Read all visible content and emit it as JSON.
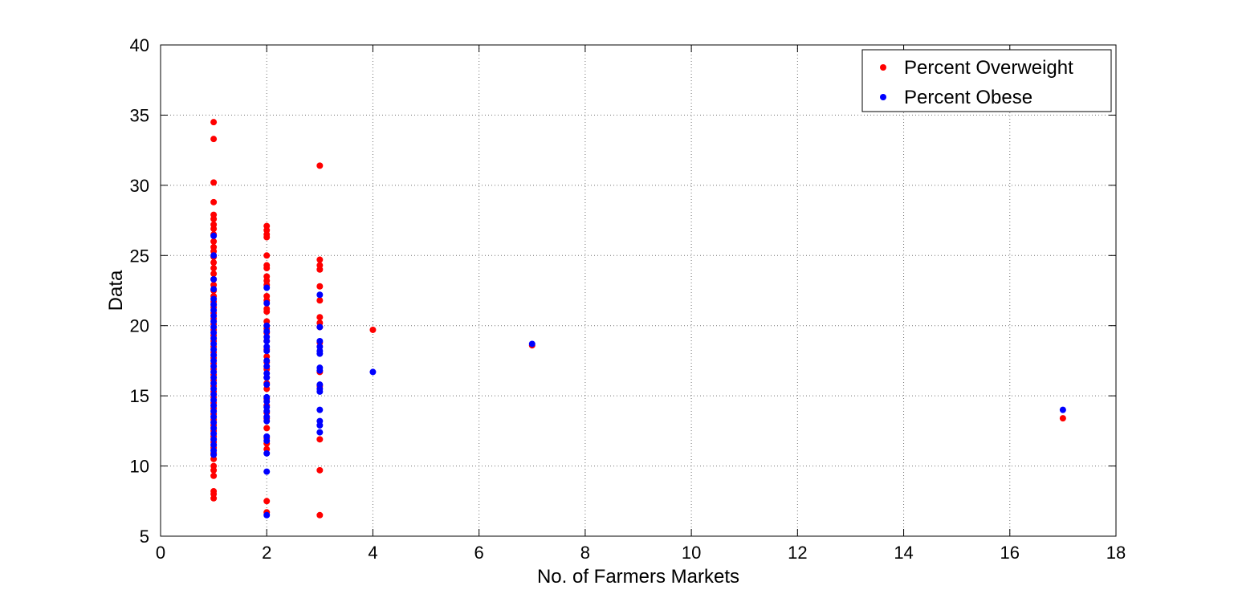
{
  "chart_data": {
    "type": "scatter",
    "title": "",
    "xlabel": "No. of Farmers Markets",
    "ylabel": "Data",
    "xlim": [
      0,
      18
    ],
    "ylim": [
      5,
      40
    ],
    "xticks": [
      0,
      2,
      4,
      6,
      8,
      10,
      12,
      14,
      16,
      18
    ],
    "yticks": [
      5,
      10,
      15,
      20,
      25,
      30,
      35,
      40
    ],
    "grid": true,
    "legend_position": "top-right",
    "series": [
      {
        "name": "Percent Overweight",
        "color": "#ff0000",
        "points": [
          [
            1,
            34.5
          ],
          [
            1,
            33.3
          ],
          [
            1,
            30.2
          ],
          [
            1,
            28.8
          ],
          [
            1,
            27.9
          ],
          [
            1,
            27.6
          ],
          [
            1,
            27.2
          ],
          [
            1,
            26.9
          ],
          [
            1,
            26.5
          ],
          [
            1,
            26.0
          ],
          [
            1,
            25.6
          ],
          [
            1,
            25.3
          ],
          [
            1,
            24.9
          ],
          [
            1,
            24.5
          ],
          [
            1,
            24.1
          ],
          [
            1,
            23.7
          ],
          [
            1,
            23.3
          ],
          [
            1,
            22.9
          ],
          [
            1,
            22.5
          ],
          [
            1,
            22.1
          ],
          [
            1,
            21.7
          ],
          [
            1,
            21.3
          ],
          [
            1,
            20.9
          ],
          [
            1,
            20.5
          ],
          [
            1,
            20.1
          ],
          [
            1,
            19.7
          ],
          [
            1,
            19.3
          ],
          [
            1,
            18.9
          ],
          [
            1,
            18.5
          ],
          [
            1,
            18.1
          ],
          [
            1,
            17.7
          ],
          [
            1,
            17.3
          ],
          [
            1,
            16.9
          ],
          [
            1,
            16.5
          ],
          [
            1,
            16.1
          ],
          [
            1,
            15.7
          ],
          [
            1,
            15.3
          ],
          [
            1,
            14.9
          ],
          [
            1,
            14.5
          ],
          [
            1,
            14.1
          ],
          [
            1,
            13.7
          ],
          [
            1,
            13.3
          ],
          [
            1,
            12.9
          ],
          [
            1,
            12.5
          ],
          [
            1,
            12.1
          ],
          [
            1,
            11.7
          ],
          [
            1,
            11.3
          ],
          [
            1,
            10.9
          ],
          [
            1,
            10.5
          ],
          [
            1,
            10.0
          ],
          [
            1,
            9.7
          ],
          [
            1,
            9.3
          ],
          [
            1,
            8.2
          ],
          [
            1,
            8.0
          ],
          [
            1,
            7.7
          ],
          [
            2,
            27.1
          ],
          [
            2,
            26.8
          ],
          [
            2,
            26.5
          ],
          [
            2,
            26.3
          ],
          [
            2,
            25.0
          ],
          [
            2,
            24.3
          ],
          [
            2,
            24.1
          ],
          [
            2,
            23.5
          ],
          [
            2,
            23.2
          ],
          [
            2,
            22.9
          ],
          [
            2,
            22.1
          ],
          [
            2,
            21.8
          ],
          [
            2,
            21.2
          ],
          [
            2,
            21.0
          ],
          [
            2,
            20.3
          ],
          [
            2,
            19.8
          ],
          [
            2,
            19.5
          ],
          [
            2,
            18.9
          ],
          [
            2,
            18.3
          ],
          [
            2,
            17.8
          ],
          [
            2,
            17.4
          ],
          [
            2,
            16.9
          ],
          [
            2,
            16.3
          ],
          [
            2,
            15.9
          ],
          [
            2,
            15.5
          ],
          [
            2,
            14.8
          ],
          [
            2,
            14.3
          ],
          [
            2,
            13.8
          ],
          [
            2,
            13.4
          ],
          [
            2,
            12.7
          ],
          [
            2,
            12.0
          ],
          [
            2,
            11.6
          ],
          [
            2,
            11.2
          ],
          [
            2,
            7.5
          ],
          [
            2,
            6.7
          ],
          [
            3,
            31.4
          ],
          [
            3,
            24.7
          ],
          [
            3,
            24.3
          ],
          [
            3,
            24.0
          ],
          [
            3,
            22.8
          ],
          [
            3,
            21.8
          ],
          [
            3,
            20.6
          ],
          [
            3,
            20.2
          ],
          [
            3,
            19.9
          ],
          [
            3,
            18.8
          ],
          [
            3,
            16.7
          ],
          [
            3,
            15.7
          ],
          [
            3,
            11.9
          ],
          [
            3,
            9.7
          ],
          [
            3,
            6.5
          ],
          [
            4,
            19.7
          ],
          [
            7,
            18.6
          ],
          [
            17,
            13.4
          ]
        ]
      },
      {
        "name": "Percent Obese",
        "color": "#0000ff",
        "points": [
          [
            1,
            26.4
          ],
          [
            1,
            25.0
          ],
          [
            1,
            23.3
          ],
          [
            1,
            22.6
          ],
          [
            1,
            21.9
          ],
          [
            1,
            21.5
          ],
          [
            1,
            21.1
          ],
          [
            1,
            20.7
          ],
          [
            1,
            20.3
          ],
          [
            1,
            19.9
          ],
          [
            1,
            19.5
          ],
          [
            1,
            19.1
          ],
          [
            1,
            18.7
          ],
          [
            1,
            18.3
          ],
          [
            1,
            17.9
          ],
          [
            1,
            17.5
          ],
          [
            1,
            17.1
          ],
          [
            1,
            16.7
          ],
          [
            1,
            16.3
          ],
          [
            1,
            15.9
          ],
          [
            1,
            15.5
          ],
          [
            1,
            15.1
          ],
          [
            1,
            14.7
          ],
          [
            1,
            14.3
          ],
          [
            1,
            13.9
          ],
          [
            1,
            13.5
          ],
          [
            1,
            13.1
          ],
          [
            1,
            12.7
          ],
          [
            1,
            12.3
          ],
          [
            1,
            11.9
          ],
          [
            1,
            11.5
          ],
          [
            1,
            11.1
          ],
          [
            1,
            10.8
          ],
          [
            2,
            22.7
          ],
          [
            2,
            21.6
          ],
          [
            2,
            20.0
          ],
          [
            2,
            19.6
          ],
          [
            2,
            19.2
          ],
          [
            2,
            18.9
          ],
          [
            2,
            18.5
          ],
          [
            2,
            18.2
          ],
          [
            2,
            17.5
          ],
          [
            2,
            17.1
          ],
          [
            2,
            16.6
          ],
          [
            2,
            16.3
          ],
          [
            2,
            15.8
          ],
          [
            2,
            14.9
          ],
          [
            2,
            14.6
          ],
          [
            2,
            14.2
          ],
          [
            2,
            13.9
          ],
          [
            2,
            13.5
          ],
          [
            2,
            13.2
          ],
          [
            2,
            12.1
          ],
          [
            2,
            11.8
          ],
          [
            2,
            10.9
          ],
          [
            2,
            9.6
          ],
          [
            2,
            6.5
          ],
          [
            3,
            22.2
          ],
          [
            3,
            19.9
          ],
          [
            3,
            18.9
          ],
          [
            3,
            18.5
          ],
          [
            3,
            18.2
          ],
          [
            3,
            18.0
          ],
          [
            3,
            17.0
          ],
          [
            3,
            16.8
          ],
          [
            3,
            15.8
          ],
          [
            3,
            15.5
          ],
          [
            3,
            15.3
          ],
          [
            3,
            14.0
          ],
          [
            3,
            13.2
          ],
          [
            3,
            12.9
          ],
          [
            3,
            12.4
          ],
          [
            4,
            16.7
          ],
          [
            7,
            18.7
          ],
          [
            17,
            14.0
          ]
        ]
      }
    ]
  }
}
